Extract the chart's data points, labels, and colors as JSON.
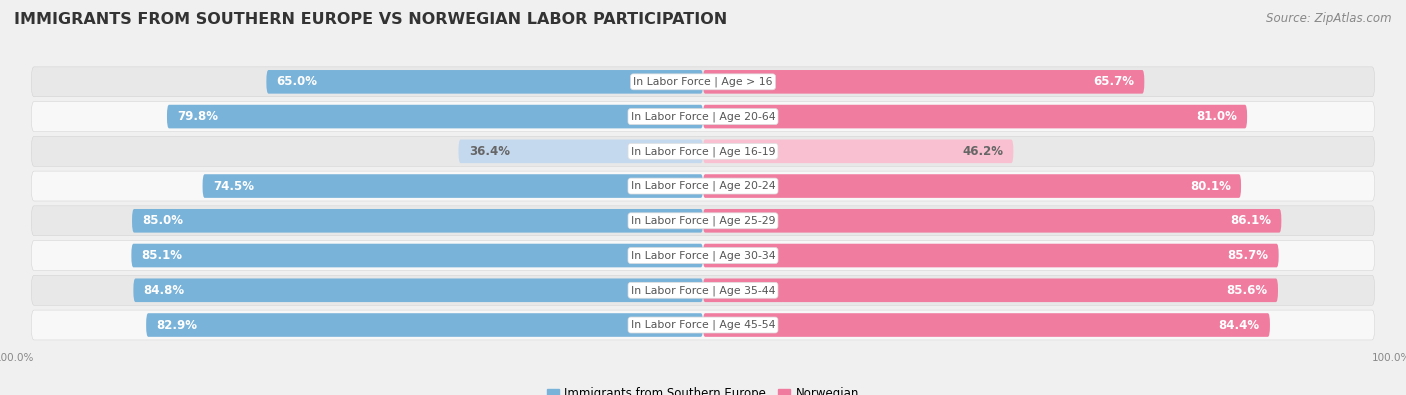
{
  "title": "IMMIGRANTS FROM SOUTHERN EUROPE VS NORWEGIAN LABOR PARTICIPATION",
  "source": "Source: ZipAtlas.com",
  "categories": [
    "In Labor Force | Age > 16",
    "In Labor Force | Age 20-64",
    "In Labor Force | Age 16-19",
    "In Labor Force | Age 20-24",
    "In Labor Force | Age 25-29",
    "In Labor Force | Age 30-34",
    "In Labor Force | Age 35-44",
    "In Labor Force | Age 45-54"
  ],
  "left_values": [
    65.0,
    79.8,
    36.4,
    74.5,
    85.0,
    85.1,
    84.8,
    82.9
  ],
  "right_values": [
    65.7,
    81.0,
    46.2,
    80.1,
    86.1,
    85.7,
    85.6,
    84.4
  ],
  "left_color_full": "#7ab3d9",
  "left_color_light": "#c5d9ee",
  "right_color_full": "#f07ca0",
  "right_color_light": "#f8c0d0",
  "left_label": "Immigrants from Southern Europe",
  "right_label": "Norwegian",
  "background_color": "#f0f0f0",
  "row_bg_color": "#e8e8e8",
  "row_alt_bg_color": "#f8f8f8",
  "xlim": 100,
  "title_fontsize": 11.5,
  "source_fontsize": 8.5,
  "bar_label_fontsize": 8.5,
  "cat_label_fontsize": 7.8,
  "axis_label_fontsize": 7.5,
  "legend_fontsize": 8.5
}
